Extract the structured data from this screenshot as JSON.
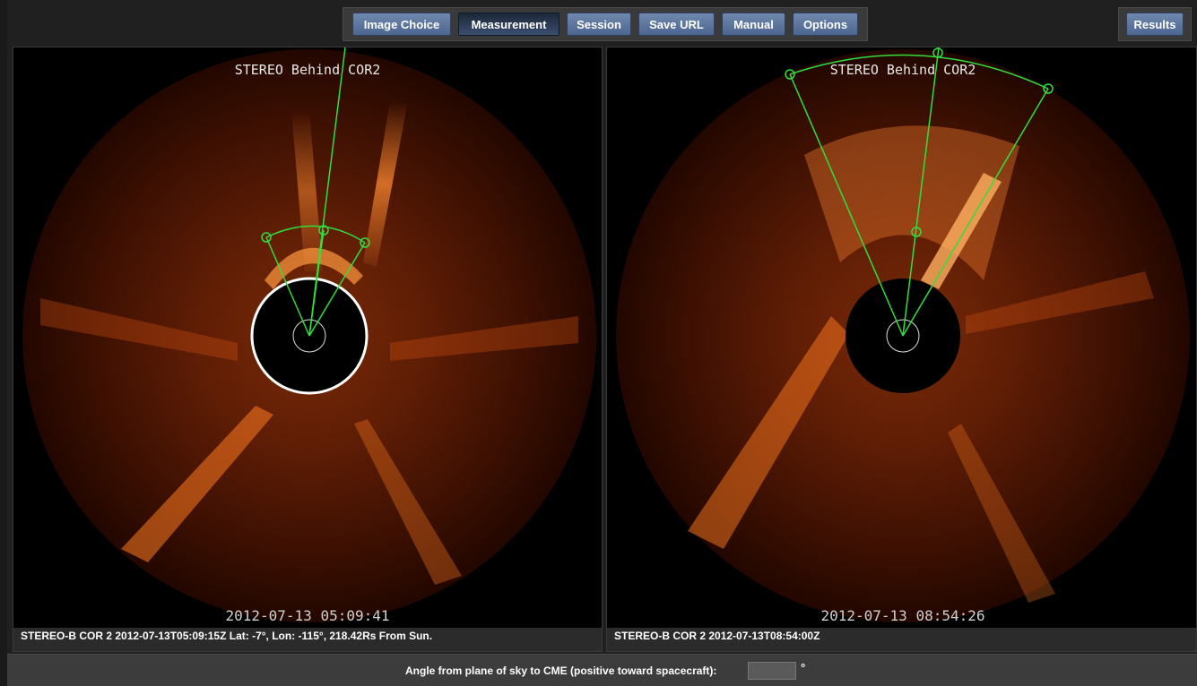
{
  "toolbar": {
    "buttons": [
      {
        "label": "Image Choice",
        "active": false
      },
      {
        "label": "Measurement",
        "active": true
      },
      {
        "label": "Session",
        "active": false
      },
      {
        "label": "Save URL",
        "active": false
      },
      {
        "label": "Manual",
        "active": false
      },
      {
        "label": "Options",
        "active": false
      }
    ],
    "results_label": "Results"
  },
  "panels": {
    "left": {
      "image_title": "STEREO Behind COR2",
      "timestamp": "2012-07-13 05:09:41",
      "caption": "STEREO-B COR 2 2012-07-13T05:09:15Z Lat: -7°, Lon: -115°, 218.42Rs From Sun."
    },
    "right": {
      "image_title": "STEREO Behind COR2",
      "timestamp": "2012-07-13 08:54:26",
      "caption": "STEREO-B COR 2 2012-07-13T08:54:00Z"
    }
  },
  "bottom": {
    "angle_label": "Angle from plane of sky to CME (positive toward spacecraft):",
    "angle_value": "",
    "degree_symbol": "°"
  },
  "colors": {
    "button": "#5a7399",
    "button_active": "#26334a",
    "overlay_green": "#2fe03a",
    "corona": "#c84a10",
    "background": "#202020"
  }
}
